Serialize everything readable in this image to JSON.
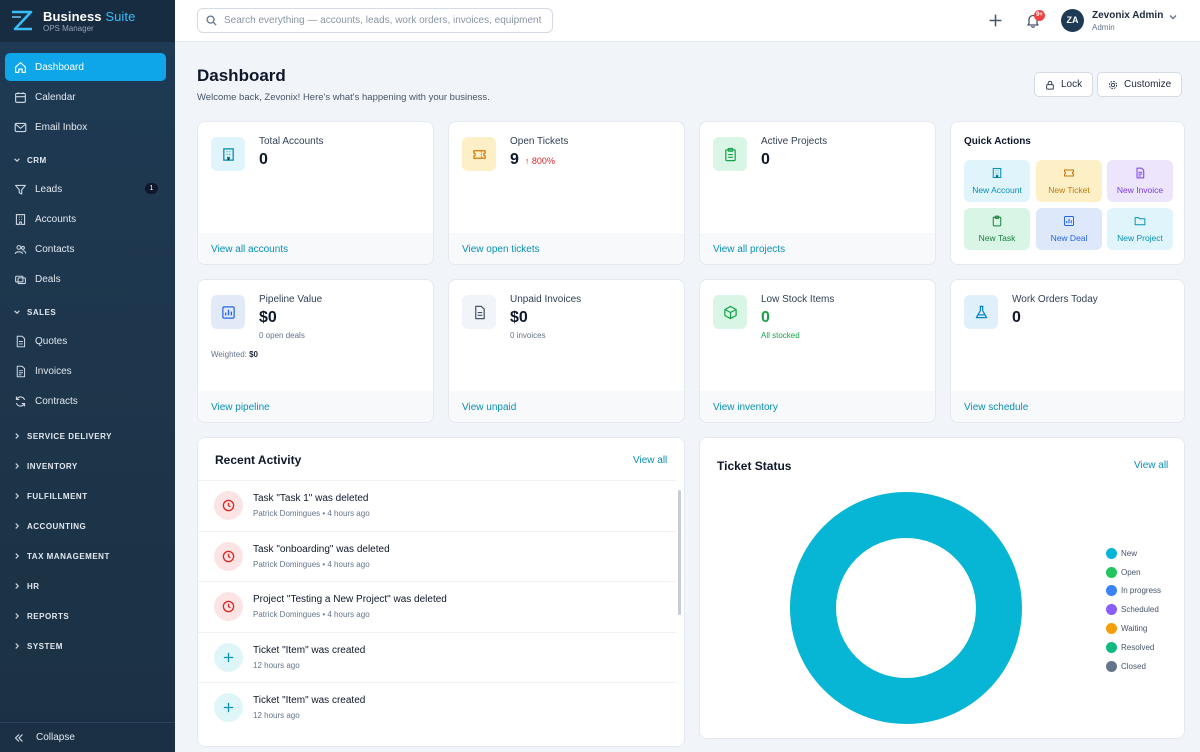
{
  "brand": {
    "name": "Business",
    "name_accent": "Suite",
    "subtitle": "OPS Manager"
  },
  "sidebar": {
    "top": [
      {
        "label": "Dashboard",
        "icon": "home-icon",
        "active": true
      },
      {
        "label": "Calendar",
        "icon": "calendar-icon"
      },
      {
        "label": "Email Inbox",
        "icon": "mail-icon"
      }
    ],
    "crm": {
      "title": "CRM",
      "items": [
        {
          "label": "Leads",
          "icon": "filter-icon",
          "badge": "1"
        },
        {
          "label": "Accounts",
          "icon": "building-icon"
        },
        {
          "label": "Contacts",
          "icon": "users-icon"
        },
        {
          "label": "Deals",
          "icon": "handshake-icon"
        }
      ]
    },
    "sales": {
      "title": "SALES",
      "items": [
        {
          "label": "Quotes",
          "icon": "document-icon"
        },
        {
          "label": "Invoices",
          "icon": "invoice-icon"
        },
        {
          "label": "Contracts",
          "icon": "refresh-icon"
        }
      ]
    },
    "sections": [
      "SERVICE DELIVERY",
      "INVENTORY",
      "FULFILLMENT",
      "ACCOUNTING",
      "TAX MANAGEMENT",
      "HR",
      "REPORTS",
      "SYSTEM"
    ],
    "collapse_label": "Collapse"
  },
  "header": {
    "search_placeholder": "Search everything — accounts, leads, work orders, invoices, equipment",
    "notifications_badge": "9+",
    "user": {
      "initials": "ZA",
      "name": "Zevonix Admin",
      "role": "Admin"
    }
  },
  "page": {
    "title": "Dashboard",
    "subtitle": "Welcome back, Zevonix! Here's what's happening with your business.",
    "lock_label": "Lock",
    "customize_label": "Customize"
  },
  "stats": [
    {
      "label": "Total Accounts",
      "value": "0",
      "link": "View all accounts",
      "icon": "building-icon",
      "color": "#e0f4fb"
    },
    {
      "label": "Open Tickets",
      "value": "9",
      "trend": "800%",
      "link": "View open tickets",
      "icon": "ticket-icon",
      "color": "#fdf0c7"
    },
    {
      "label": "Active Projects",
      "value": "0",
      "link": "View all projects",
      "icon": "clipboard-icon",
      "color": "#d9f5e6"
    },
    {
      "label": "Pipeline Value",
      "value": "$0",
      "sub": "0 open deals",
      "weighted_label": "Weighted:",
      "weighted_value": "$0",
      "link": "View pipeline",
      "icon": "bar-chart-icon",
      "color": "#e2eaf8"
    },
    {
      "label": "Unpaid Invoices",
      "value": "$0",
      "sub": "0 invoices",
      "link": "View unpaid",
      "icon": "invoice-icon",
      "color": "#f1f4f8"
    },
    {
      "label": "Low Stock Items",
      "value": "0",
      "sub": "All stocked",
      "link": "View inventory",
      "icon": "box-icon",
      "color": "#d9f5e6"
    },
    {
      "label": "Work Orders Today",
      "value": "0",
      "link": "View schedule",
      "icon": "flask-icon",
      "color": "#e0f0fb"
    }
  ],
  "quick_actions": {
    "title": "Quick Actions",
    "items": [
      {
        "label": "New Account",
        "icon": "building-icon",
        "bg": "#dff4fb",
        "fg": "#0891b2"
      },
      {
        "label": "New Ticket",
        "icon": "ticket-icon",
        "bg": "#fdf0c7",
        "fg": "#c2780a"
      },
      {
        "label": "New Invoice",
        "icon": "invoice-icon",
        "bg": "#ede5fb",
        "fg": "#7c3aed"
      },
      {
        "label": "New Task",
        "icon": "clipboard-icon",
        "bg": "#d9f5e6",
        "fg": "#15803d"
      },
      {
        "label": "New Deal",
        "icon": "bar-chart-icon",
        "bg": "#dde8fb",
        "fg": "#2563eb"
      },
      {
        "label": "New Project",
        "icon": "folder-icon",
        "bg": "#dff4fb",
        "fg": "#0891b2"
      }
    ]
  },
  "recent_activity": {
    "title": "Recent Activity",
    "view_all": "View all",
    "items": [
      {
        "text": "Task \"Task 1\" was deleted",
        "meta": "Patrick Domingues • 4 hours ago",
        "type": "deleted"
      },
      {
        "text": "Task \"onboarding\" was deleted",
        "meta": "Patrick Domingues • 4 hours ago",
        "type": "deleted"
      },
      {
        "text": "Project \"Testing a New Project\" was deleted",
        "meta": "Patrick Domingues • 4 hours ago",
        "type": "deleted"
      },
      {
        "text": "Ticket \"Item\" was created",
        "meta": "12 hours ago",
        "type": "created"
      },
      {
        "text": "Ticket \"Item\" was created",
        "meta": "12 hours ago",
        "type": "created"
      }
    ]
  },
  "ticket_status": {
    "title": "Ticket Status",
    "view_all": "View all"
  },
  "chart_data": {
    "type": "pie",
    "title": "Ticket Status",
    "labels": [
      "New",
      "Open",
      "In progress",
      "Scheduled",
      "Waiting",
      "Resolved",
      "Closed"
    ],
    "values": [
      9,
      0,
      0,
      0,
      0,
      0,
      0
    ],
    "colors": [
      "#06b6d4",
      "#22c55e",
      "#3b82f6",
      "#8b5cf6",
      "#f59e0b",
      "#10b981",
      "#64748b"
    ],
    "legend": "right"
  }
}
